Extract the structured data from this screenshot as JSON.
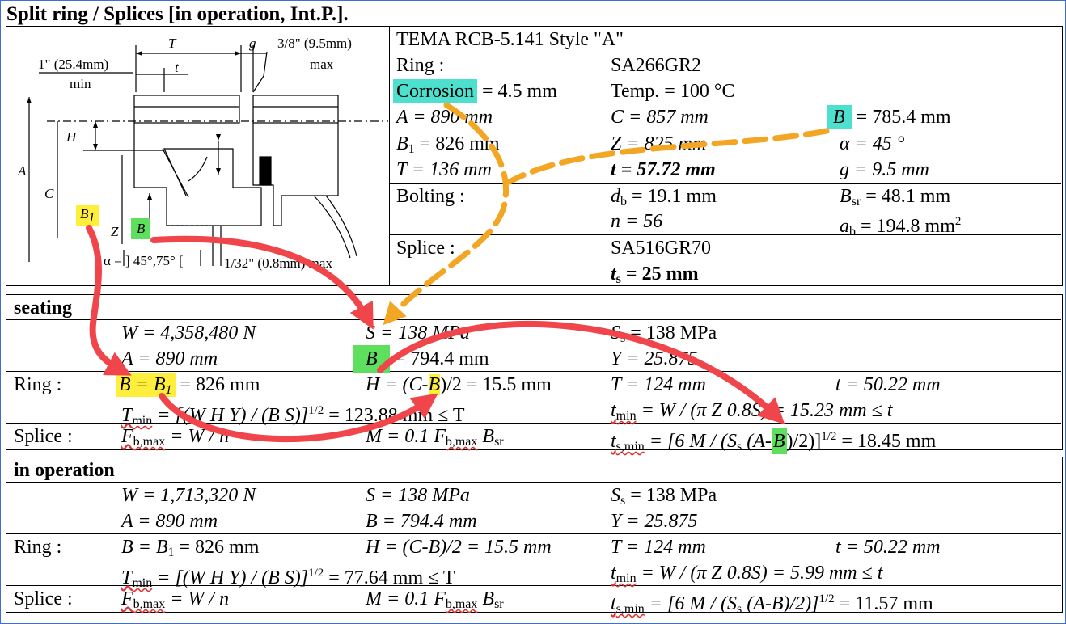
{
  "title": "Split ring / Splices [in operation, Int.P.].",
  "figure": {
    "T": "T",
    "g": "g",
    "max_gap": "3/8\" (9.5mm)",
    "max_word": "max",
    "min_len": "1\" (25.4mm)",
    "min_word": "min",
    "t": "t",
    "H": "H",
    "A": "A",
    "C": "C",
    "B1": "B",
    "B1_sub": "1",
    "Z": "Z",
    "B": "B",
    "alpha": "α = ] 45°,75° [",
    "gap_bottom": "1/32\" (0.8mm) max"
  },
  "tema": {
    "header": "TEMA RCB-5.141 Style \"A\"",
    "ring_label": "Ring :",
    "ring_material": "SA266GR2",
    "corrosion_word": "Corrosion",
    "corrosion_rest": " = 4.5 mm",
    "temp": "Temp. = 100 °C",
    "A": "A = 890 mm",
    "C": "C = 857 mm",
    "B_var": "B",
    "B_rest": " = 785.4 mm",
    "B1": "B",
    "B1_sub": "1",
    "B1_rest": " = 826 mm",
    "Z": "Z = 825 mm",
    "alpha": "α = 45 °",
    "T": "T = 136 mm",
    "t": "t = 57.72 mm",
    "g": "g = 9.5 mm",
    "bolting_label": "Bolting :",
    "db": "d",
    "db_sub": "b",
    "db_rest": " = 19.1 mm",
    "Bsr": "B",
    "Bsr_sub": "sr",
    "Bsr_rest": " = 48.1 mm",
    "n": "n = 56",
    "ab": "a",
    "ab_sub": "b",
    "ab_rest": " = 194.8 mm",
    "ab_sup": "2",
    "splice_label": "Splice :",
    "splice_material": "SA516GR70",
    "ts": "t",
    "ts_sub": "s",
    "ts_rest": " = 25 mm"
  },
  "seating": {
    "header": "seating",
    "W": "W = 4,358,480 N",
    "S": "S = 138 MPa",
    "Ss": "S",
    "Ss_sub": "s",
    "Ss_rest": " = 138 MPa",
    "A": "A = 890 mm",
    "B_var": "B",
    "B_rest": " = 794.4 mm",
    "Y": "Y = 25.875",
    "ring_label": "Ring :",
    "BB1": "B = B",
    "BB1_sub": "1",
    "BB1_rest": " = 826 mm",
    "H_pre": "H = (C-",
    "H_B": "B",
    "H_post": ")/2 = 15.5 mm",
    "T": "T = 124 mm",
    "t": "t = 50.22 mm",
    "Tmin": "T",
    "Tmin_sub": "min",
    "Tmin_mid": " = [(W H Y) / (B S)]",
    "Tmin_sup": "1/2",
    "Tmin_rest": " = 123.88 mm ≤ T",
    "tmin": "t",
    "tmin_sub": "min",
    "tmin_rest": " = W / (π Z 0.8S) = 15.23 mm ≤ t",
    "splice_label": "Splice :",
    "Fb": "F",
    "Fb_sub": "b,max",
    "Fb_rest": " = W / n",
    "M": "M = 0.1 F",
    "M_sub": "b,max",
    "M_B": " B",
    "M_Bsub": "sr",
    "tsmin": "t",
    "tsmin_sub": "s,min",
    "tsmin_pre": " = [6 M / (S",
    "tsmin_ssub": "s",
    "tsmin_mid": " (A-",
    "tsmin_B": "B",
    "tsmin_post": ")/2)]",
    "tsmin_sup": "1/2",
    "tsmin_rest": " = 18.45 mm"
  },
  "operation": {
    "header": "in operation",
    "W": "W = 1,713,320 N",
    "S": "S = 138 MPa",
    "Ss": "S",
    "Ss_sub": "s",
    "Ss_rest": " = 138 MPa",
    "A": "A = 890 mm",
    "B": "B = 794.4 mm",
    "Y": "Y = 25.875",
    "ring_label": "Ring :",
    "BB1": "B = B",
    "BB1_sub": "1",
    "BB1_rest": " = 826 mm",
    "H": "H = (C-B)/2 = 15.5 mm",
    "T": "T = 124 mm",
    "t": "t = 50.22 mm",
    "Tmin": "T",
    "Tmin_sub": "min",
    "Tmin_mid": " = [(W H Y) / (B S)]",
    "Tmin_sup": "1/2",
    "Tmin_rest": " = 77.64 mm ≤ T",
    "tmin": "t",
    "tmin_sub": "min",
    "tmin_rest": " = W / (π Z 0.8S) = 5.99 mm ≤ t",
    "splice_label": "Splice :",
    "Fb": "F",
    "Fb_sub": "b,max",
    "Fb_rest": " = W / n",
    "M": "M = 0.1 F",
    "M_sub": "b,max",
    "M_B": " B",
    "M_Bsub": "sr",
    "tsmin": "t",
    "tsmin_sub": "s,min",
    "tsmin_pre": " = [6 M / (S",
    "tsmin_ssub": "s",
    "tsmin_post": " (A-B)/2)]",
    "tsmin_sup": "1/2",
    "tsmin_rest": " = 11.57 mm"
  },
  "colors": {
    "highlight_yellow": "#ffef3b",
    "highlight_green": "#5ee05e",
    "highlight_cyan": "#4ee0cf",
    "arrow_red": "#f0454a",
    "arrow_orange": "#f2a623",
    "frame_blue": "#3b6fd6"
  }
}
